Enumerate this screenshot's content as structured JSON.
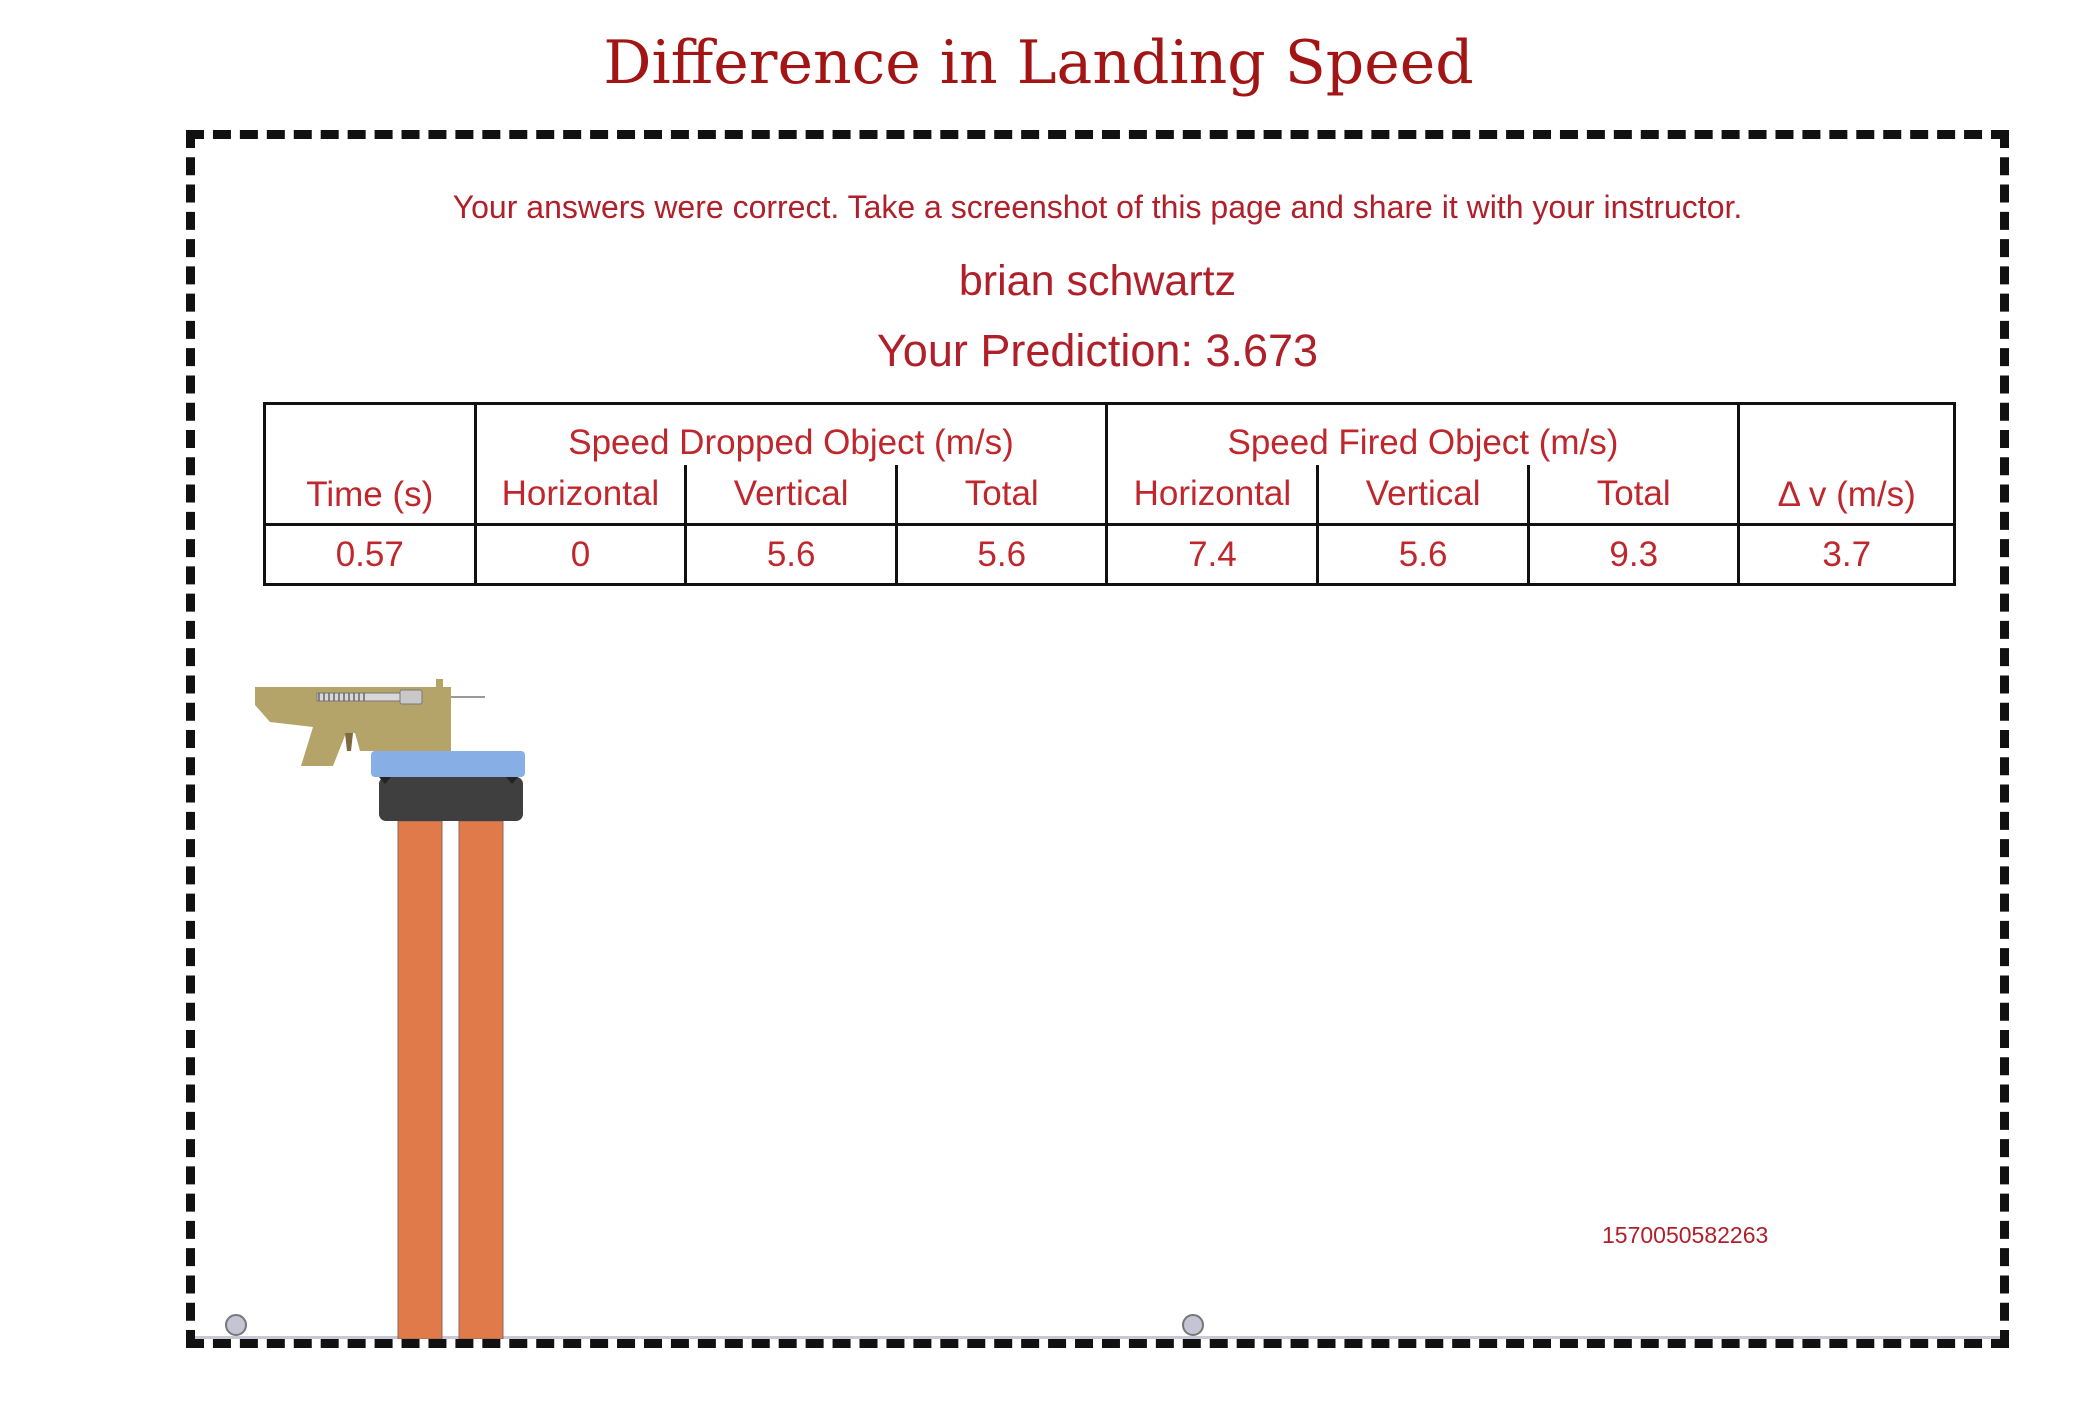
{
  "page": {
    "title": "Difference in Landing Speed"
  },
  "result": {
    "message": "Your answers were correct.  Take a screenshot of this page and share it with your instructor.",
    "student_name": "brian schwartz",
    "prediction": "Your Prediction: 3.673"
  },
  "table": {
    "group_dropped": "Speed Dropped Object (m/s)",
    "group_fired": "Speed Fired Object (m/s)",
    "col_time": "Time (s)",
    "col_horizontal": "Horizontal",
    "col_vertical": "Vertical",
    "col_total": "Total",
    "col_delta_v": "Δ v (m/s)",
    "row": {
      "time": "0.57",
      "dropped_horizontal": "0",
      "dropped_vertical": "5.6",
      "dropped_total": "5.6",
      "fired_horizontal": "7.4",
      "fired_vertical": "5.6",
      "fired_total": "9.3",
      "delta_v": "3.7"
    }
  },
  "simulation": {
    "id_label": "1570050582263",
    "colors": {
      "launcher": "#b5a46a",
      "platform": "#87afe5",
      "clamp": "#3f3f3f",
      "legs": "#e07a4b",
      "ground": "#c8c8d8",
      "ball": "#c4c4d4"
    }
  }
}
